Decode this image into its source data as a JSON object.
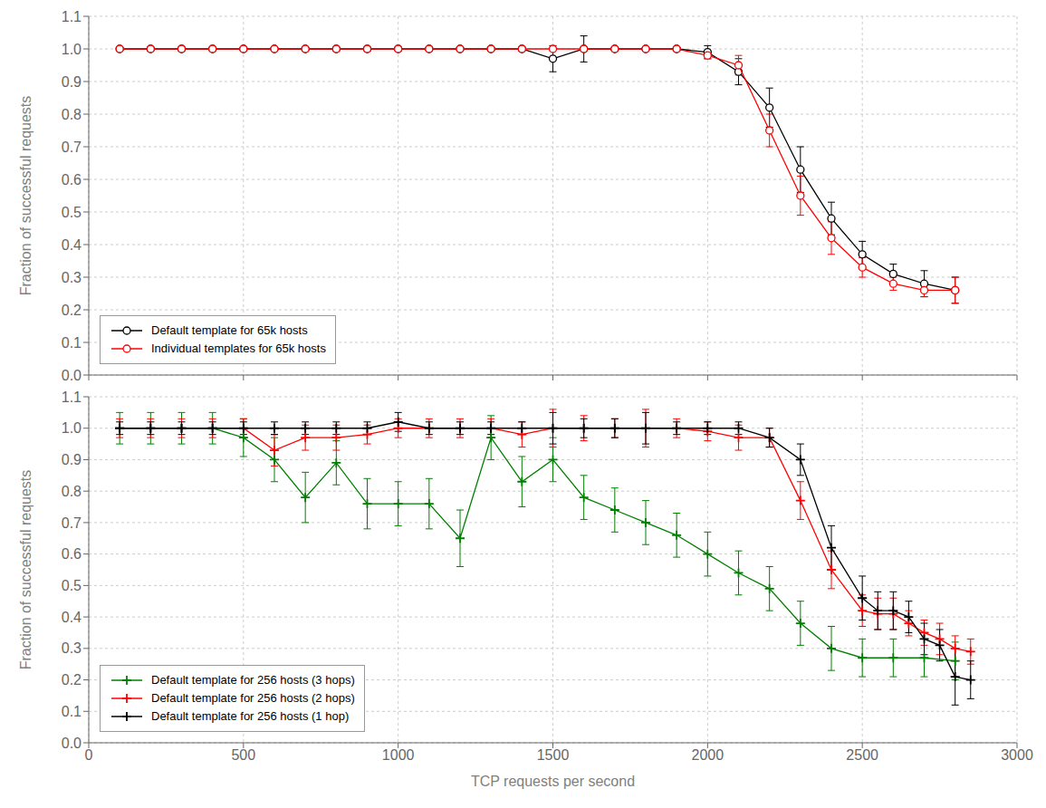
{
  "chart_data": [
    {
      "type": "line",
      "ylabel": "Fraction of successful requests",
      "xlim": [
        0,
        3000
      ],
      "ylim": [
        0,
        1.1
      ],
      "xticks": [
        0,
        500,
        1000,
        1500,
        2000,
        2500,
        3000
      ],
      "yticks": [
        {
          "value": 0,
          "label": "0.0"
        },
        0.1,
        0.2,
        0.3,
        0.4,
        0.5,
        0.6,
        0.7,
        0.8,
        0.9,
        {
          "value": 1.0,
          "label": "1.0"
        },
        1.1
      ],
      "grid": true,
      "legend": "lower left",
      "tick_labels": "y",
      "series": [
        {
          "name": "Default template for 65k hosts",
          "color": "black",
          "marker": "circle",
          "x": [
            100,
            200,
            300,
            400,
            500,
            600,
            700,
            800,
            900,
            1000,
            1100,
            1200,
            1300,
            1400,
            1500,
            1600,
            1700,
            1800,
            1900,
            2000,
            2100,
            2200,
            2300,
            2400,
            2500,
            2600,
            2700,
            2800
          ],
          "values": [
            1.0,
            1.0,
            1.0,
            1.0,
            1.0,
            1.0,
            1.0,
            1.0,
            1.0,
            1.0,
            1.0,
            1.0,
            1.0,
            1.0,
            0.97,
            1.0,
            1.0,
            1.0,
            1.0,
            0.99,
            0.93,
            0.82,
            0.63,
            0.48,
            0.37,
            0.31,
            0.28,
            0.26
          ],
          "yerr": [
            0.005,
            0.005,
            0.005,
            0.005,
            0.005,
            0.005,
            0.005,
            0.005,
            0.005,
            0.005,
            0.005,
            0.005,
            0.005,
            0.005,
            0.04,
            0.04,
            0.005,
            0.005,
            0.005,
            0.02,
            0.04,
            0.06,
            0.07,
            0.05,
            0.04,
            0.03,
            0.04,
            0.04
          ]
        },
        {
          "name": "Individual templates for 65k hosts",
          "color": "red",
          "marker": "circle",
          "x": [
            100,
            200,
            300,
            400,
            500,
            600,
            700,
            800,
            900,
            1000,
            1100,
            1200,
            1300,
            1400,
            1500,
            1600,
            1700,
            1800,
            1900,
            2000,
            2100,
            2200,
            2300,
            2400,
            2500,
            2600,
            2700,
            2800
          ],
          "values": [
            1.0,
            1.0,
            1.0,
            1.0,
            1.0,
            1.0,
            1.0,
            1.0,
            1.0,
            1.0,
            1.0,
            1.0,
            1.0,
            1.0,
            1.0,
            1.0,
            1.0,
            1.0,
            1.0,
            0.98,
            0.95,
            0.75,
            0.55,
            0.42,
            0.33,
            0.28,
            0.26,
            0.26
          ],
          "yerr": [
            0.005,
            0.005,
            0.005,
            0.005,
            0.005,
            0.005,
            0.005,
            0.005,
            0.005,
            0.005,
            0.005,
            0.005,
            0.005,
            0.005,
            0.005,
            0.005,
            0.005,
            0.005,
            0.005,
            0.01,
            0.03,
            0.05,
            0.06,
            0.05,
            0.03,
            0.02,
            0.02,
            0.04
          ]
        }
      ]
    },
    {
      "type": "line",
      "xlabel": "TCP requests per second",
      "ylabel": "Fraction of successful requests",
      "xlim": [
        0,
        3000
      ],
      "ylim": [
        0,
        1.1
      ],
      "xticks": [
        0,
        500,
        1000,
        1500,
        2000,
        2500,
        3000
      ],
      "yticks": [
        {
          "value": 0,
          "label": "0.0"
        },
        0.1,
        0.2,
        0.3,
        0.4,
        0.5,
        0.6,
        0.7,
        0.8,
        0.9,
        {
          "value": 1.0,
          "label": "1.0"
        },
        1.1
      ],
      "grid": true,
      "legend": "lower left",
      "series": [
        {
          "name": "Default template for 256 hosts (3 hops)",
          "color": "green",
          "marker": "plus",
          "x": [
            100,
            200,
            300,
            400,
            500,
            600,
            700,
            800,
            900,
            1000,
            1100,
            1200,
            1300,
            1400,
            1500,
            1600,
            1700,
            1800,
            1900,
            2000,
            2100,
            2200,
            2300,
            2400,
            2500,
            2600,
            2700,
            2800
          ],
          "values": [
            1.0,
            1.0,
            1.0,
            1.0,
            0.97,
            0.9,
            0.78,
            0.89,
            0.76,
            0.76,
            0.76,
            0.65,
            0.97,
            0.83,
            0.9,
            0.78,
            0.74,
            0.7,
            0.66,
            0.6,
            0.54,
            0.49,
            0.38,
            0.3,
            0.27,
            0.27,
            0.27,
            0.26
          ],
          "yerr": [
            0.05,
            0.05,
            0.05,
            0.05,
            0.06,
            0.07,
            0.08,
            0.07,
            0.08,
            0.07,
            0.08,
            0.09,
            0.07,
            0.08,
            0.07,
            0.07,
            0.07,
            0.07,
            0.07,
            0.07,
            0.07,
            0.07,
            0.07,
            0.07,
            0.06,
            0.06,
            0.06,
            0.06
          ]
        },
        {
          "name": "Default template for 256 hosts (2 hops)",
          "color": "red",
          "marker": "plus",
          "x": [
            100,
            200,
            300,
            400,
            500,
            600,
            700,
            800,
            900,
            1000,
            1100,
            1200,
            1300,
            1400,
            1500,
            1600,
            1700,
            1800,
            1900,
            2000,
            2100,
            2200,
            2300,
            2400,
            2500,
            2550,
            2600,
            2650,
            2700,
            2750,
            2800,
            2850
          ],
          "values": [
            1.0,
            1.0,
            1.0,
            1.0,
            1.0,
            0.93,
            0.97,
            0.97,
            0.98,
            1.0,
            1.0,
            1.0,
            1.0,
            0.98,
            1.0,
            1.0,
            1.0,
            1.0,
            1.0,
            0.99,
            0.97,
            0.97,
            0.77,
            0.55,
            0.42,
            0.41,
            0.41,
            0.38,
            0.35,
            0.33,
            0.3,
            0.29
          ],
          "yerr": [
            0.03,
            0.03,
            0.03,
            0.03,
            0.03,
            0.05,
            0.04,
            0.04,
            0.03,
            0.03,
            0.03,
            0.03,
            0.03,
            0.04,
            0.06,
            0.04,
            0.03,
            0.06,
            0.03,
            0.03,
            0.04,
            0.03,
            0.06,
            0.06,
            0.05,
            0.05,
            0.05,
            0.04,
            0.04,
            0.05,
            0.04,
            0.04
          ]
        },
        {
          "name": "Default template for 256 hosts (1 hop)",
          "color": "black",
          "marker": "plus",
          "x": [
            100,
            200,
            300,
            400,
            500,
            600,
            700,
            800,
            900,
            1000,
            1100,
            1200,
            1300,
            1400,
            1500,
            1600,
            1700,
            1800,
            1900,
            2000,
            2100,
            2200,
            2300,
            2400,
            2500,
            2550,
            2600,
            2650,
            2700,
            2750,
            2800,
            2850
          ],
          "values": [
            1.0,
            1.0,
            1.0,
            1.0,
            1.0,
            1.0,
            1.0,
            1.0,
            1.0,
            1.02,
            1.0,
            1.0,
            1.0,
            1.0,
            1.0,
            1.0,
            1.0,
            1.0,
            1.0,
            1.0,
            1.0,
            0.97,
            0.9,
            0.62,
            0.46,
            0.42,
            0.42,
            0.4,
            0.33,
            0.31,
            0.21,
            0.2
          ],
          "yerr": [
            0.02,
            0.02,
            0.02,
            0.02,
            0.02,
            0.02,
            0.02,
            0.02,
            0.02,
            0.03,
            0.02,
            0.02,
            0.02,
            0.02,
            0.05,
            0.03,
            0.03,
            0.05,
            0.02,
            0.02,
            0.02,
            0.03,
            0.05,
            0.07,
            0.07,
            0.06,
            0.06,
            0.05,
            0.05,
            0.05,
            0.09,
            0.06
          ]
        }
      ]
    }
  ]
}
